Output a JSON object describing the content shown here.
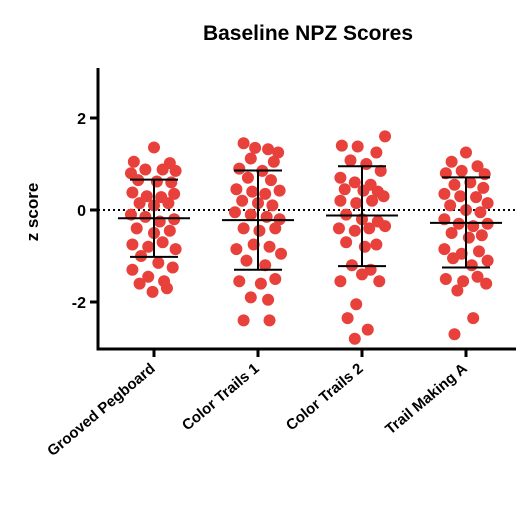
{
  "chart_data": {
    "type": "scatter",
    "title": "Baseline NPZ Scores",
    "xlabel": "",
    "ylabel": "z score",
    "ylim": [
      -3.0,
      3.0
    ],
    "yticks": [
      2,
      0,
      -2
    ],
    "ytick_labels": [
      "2",
      "0",
      "-2"
    ],
    "categories": [
      "Grooved Pegboard",
      "Color Trails 1",
      "Color Trails 2",
      "Trail Making A"
    ],
    "reference_line": {
      "y": 0,
      "style": "dotted"
    },
    "grid": false,
    "legend": "none",
    "point_color": "#E8403A",
    "series": [
      {
        "category": "Grooved Pegboard",
        "mean": -0.18,
        "sd_low": -1.02,
        "sd_high": 0.66,
        "points": [
          {
            "offset": 0.0,
            "y": 1.36
          },
          {
            "offset": -0.28,
            "y": 1.05
          },
          {
            "offset": 0.22,
            "y": 1.02
          },
          {
            "offset": -0.12,
            "y": 0.88
          },
          {
            "offset": 0.12,
            "y": 0.88
          },
          {
            "offset": -0.32,
            "y": 0.8
          },
          {
            "offset": 0.3,
            "y": 0.85
          },
          {
            "offset": -0.22,
            "y": 0.65
          },
          {
            "offset": 0.04,
            "y": 0.62
          },
          {
            "offset": 0.24,
            "y": 0.6
          },
          {
            "offset": -0.3,
            "y": 0.38
          },
          {
            "offset": -0.1,
            "y": 0.3
          },
          {
            "offset": 0.1,
            "y": 0.28
          },
          {
            "offset": 0.28,
            "y": 0.35
          },
          {
            "offset": -0.2,
            "y": 0.15
          },
          {
            "offset": 0.0,
            "y": 0.1
          },
          {
            "offset": 0.2,
            "y": 0.15
          },
          {
            "offset": -0.32,
            "y": -0.1
          },
          {
            "offset": -0.12,
            "y": -0.15
          },
          {
            "offset": 0.08,
            "y": -0.25
          },
          {
            "offset": 0.28,
            "y": -0.2
          },
          {
            "offset": -0.24,
            "y": -0.4
          },
          {
            "offset": 0.0,
            "y": -0.5
          },
          {
            "offset": 0.22,
            "y": -0.45
          },
          {
            "offset": -0.3,
            "y": -0.75
          },
          {
            "offset": -0.08,
            "y": -0.8
          },
          {
            "offset": 0.12,
            "y": -0.7
          },
          {
            "offset": 0.3,
            "y": -0.85
          },
          {
            "offset": -0.18,
            "y": -1.0
          },
          {
            "offset": 0.06,
            "y": -1.15
          },
          {
            "offset": -0.3,
            "y": -1.3
          },
          {
            "offset": 0.26,
            "y": -1.25
          },
          {
            "offset": -0.08,
            "y": -1.45
          },
          {
            "offset": 0.14,
            "y": -1.55
          },
          {
            "offset": -0.2,
            "y": -1.6
          },
          {
            "offset": -0.02,
            "y": -1.78
          },
          {
            "offset": 0.18,
            "y": -1.7
          }
        ]
      },
      {
        "category": "Color Trails 1",
        "mean": -0.22,
        "sd_low": -1.3,
        "sd_high": 0.86,
        "points": [
          {
            "offset": -0.2,
            "y": 1.45
          },
          {
            "offset": -0.04,
            "y": 1.35
          },
          {
            "offset": 0.14,
            "y": 1.32
          },
          {
            "offset": 0.28,
            "y": 1.25
          },
          {
            "offset": -0.1,
            "y": 1.12
          },
          {
            "offset": 0.22,
            "y": 1.05
          },
          {
            "offset": -0.26,
            "y": 0.9
          },
          {
            "offset": 0.06,
            "y": 0.85
          },
          {
            "offset": -0.14,
            "y": 0.7
          },
          {
            "offset": 0.18,
            "y": 0.65
          },
          {
            "offset": -0.3,
            "y": 0.45
          },
          {
            "offset": -0.08,
            "y": 0.4
          },
          {
            "offset": 0.1,
            "y": 0.35
          },
          {
            "offset": 0.3,
            "y": 0.42
          },
          {
            "offset": -0.22,
            "y": 0.2
          },
          {
            "offset": 0.0,
            "y": 0.15
          },
          {
            "offset": 0.2,
            "y": 0.1
          },
          {
            "offset": -0.32,
            "y": -0.05
          },
          {
            "offset": -0.1,
            "y": -0.1
          },
          {
            "offset": 0.12,
            "y": -0.15
          },
          {
            "offset": 0.3,
            "y": -0.2
          },
          {
            "offset": -0.2,
            "y": -0.4
          },
          {
            "offset": 0.02,
            "y": -0.45
          },
          {
            "offset": 0.24,
            "y": -0.4
          },
          {
            "offset": -0.3,
            "y": -0.85
          },
          {
            "offset": -0.06,
            "y": -0.75
          },
          {
            "offset": 0.16,
            "y": -0.8
          },
          {
            "offset": 0.32,
            "y": -0.95
          },
          {
            "offset": -0.16,
            "y": -1.1
          },
          {
            "offset": 0.1,
            "y": -1.2
          },
          {
            "offset": -0.26,
            "y": -1.55
          },
          {
            "offset": 0.04,
            "y": -1.6
          },
          {
            "offset": 0.24,
            "y": -1.5
          },
          {
            "offset": -0.1,
            "y": -1.9
          },
          {
            "offset": 0.14,
            "y": -1.95
          },
          {
            "offset": -0.2,
            "y": -2.4
          },
          {
            "offset": 0.16,
            "y": -2.4
          }
        ]
      },
      {
        "category": "Color Trails 2",
        "mean": -0.12,
        "sd_low": -1.22,
        "sd_high": 0.95,
        "points": [
          {
            "offset": -0.28,
            "y": 1.4
          },
          {
            "offset": -0.06,
            "y": 1.38
          },
          {
            "offset": 0.32,
            "y": 1.6
          },
          {
            "offset": 0.2,
            "y": 1.25
          },
          {
            "offset": -0.16,
            "y": 1.08
          },
          {
            "offset": 0.06,
            "y": 1.0
          },
          {
            "offset": -0.3,
            "y": 0.7
          },
          {
            "offset": 0.26,
            "y": 0.85
          },
          {
            "offset": -0.1,
            "y": 0.6
          },
          {
            "offset": 0.12,
            "y": 0.55
          },
          {
            "offset": -0.24,
            "y": 0.45
          },
          {
            "offset": 0.02,
            "y": 0.42
          },
          {
            "offset": 0.22,
            "y": 0.4
          },
          {
            "offset": -0.3,
            "y": 0.2
          },
          {
            "offset": -0.08,
            "y": 0.15
          },
          {
            "offset": 0.14,
            "y": 0.2
          },
          {
            "offset": 0.3,
            "y": 0.3
          },
          {
            "offset": -0.22,
            "y": -0.1
          },
          {
            "offset": 0.0,
            "y": -0.2
          },
          {
            "offset": 0.22,
            "y": -0.25
          },
          {
            "offset": -0.32,
            "y": -0.4
          },
          {
            "offset": -0.1,
            "y": -0.45
          },
          {
            "offset": 0.1,
            "y": -0.4
          },
          {
            "offset": 0.32,
            "y": -0.35
          },
          {
            "offset": -0.22,
            "y": -0.7
          },
          {
            "offset": 0.04,
            "y": -0.8
          },
          {
            "offset": 0.2,
            "y": -0.75
          },
          {
            "offset": -0.14,
            "y": -1.2
          },
          {
            "offset": 0.12,
            "y": -1.3
          },
          {
            "offset": -0.3,
            "y": -1.55
          },
          {
            "offset": 0.0,
            "y": -1.4
          },
          {
            "offset": 0.24,
            "y": -1.55
          },
          {
            "offset": -0.08,
            "y": -2.05
          },
          {
            "offset": -0.2,
            "y": -2.35
          },
          {
            "offset": 0.08,
            "y": -2.6
          },
          {
            "offset": -0.1,
            "y": -2.8
          }
        ]
      },
      {
        "category": "Trail Making A",
        "mean": -0.28,
        "sd_low": -1.25,
        "sd_high": 0.71,
        "points": [
          {
            "offset": 0.0,
            "y": 1.25
          },
          {
            "offset": -0.2,
            "y": 1.05
          },
          {
            "offset": 0.16,
            "y": 0.95
          },
          {
            "offset": -0.28,
            "y": 0.8
          },
          {
            "offset": -0.06,
            "y": 0.85
          },
          {
            "offset": 0.26,
            "y": 0.78
          },
          {
            "offset": -0.16,
            "y": 0.55
          },
          {
            "offset": 0.06,
            "y": 0.6
          },
          {
            "offset": 0.24,
            "y": 0.48
          },
          {
            "offset": -0.3,
            "y": 0.35
          },
          {
            "offset": -0.08,
            "y": 0.3
          },
          {
            "offset": 0.14,
            "y": 0.28
          },
          {
            "offset": 0.3,
            "y": 0.15
          },
          {
            "offset": -0.22,
            "y": 0.1
          },
          {
            "offset": 0.0,
            "y": 0.0
          },
          {
            "offset": 0.2,
            "y": -0.05
          },
          {
            "offset": -0.3,
            "y": -0.2
          },
          {
            "offset": -0.1,
            "y": -0.3
          },
          {
            "offset": 0.1,
            "y": -0.35
          },
          {
            "offset": 0.3,
            "y": -0.3
          },
          {
            "offset": -0.2,
            "y": -0.5
          },
          {
            "offset": 0.04,
            "y": -0.6
          },
          {
            "offset": 0.22,
            "y": -0.55
          },
          {
            "offset": -0.3,
            "y": -0.85
          },
          {
            "offset": -0.06,
            "y": -0.95
          },
          {
            "offset": 0.18,
            "y": -0.9
          },
          {
            "offset": -0.18,
            "y": -1.05
          },
          {
            "offset": 0.3,
            "y": -1.1
          },
          {
            "offset": 0.08,
            "y": -1.2
          },
          {
            "offset": -0.28,
            "y": -1.5
          },
          {
            "offset": -0.04,
            "y": -1.55
          },
          {
            "offset": 0.16,
            "y": -1.45
          },
          {
            "offset": 0.28,
            "y": -1.6
          },
          {
            "offset": -0.12,
            "y": -1.75
          },
          {
            "offset": 0.1,
            "y": -2.35
          },
          {
            "offset": -0.16,
            "y": -2.7
          }
        ]
      }
    ]
  }
}
